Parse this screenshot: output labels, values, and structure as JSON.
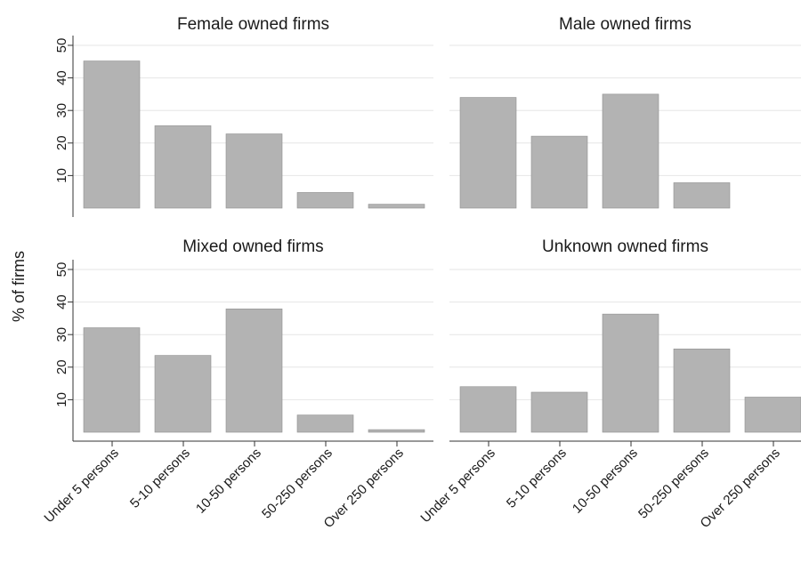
{
  "chart_data": {
    "type": "bar",
    "ylabel": "% of firms",
    "categories": [
      "Under 5 persons",
      "5-10 persons",
      "10-50 persons",
      "50-250 persons",
      "Over 250 persons"
    ],
    "ylim": [
      0,
      53
    ],
    "yticks": [
      10,
      20,
      30,
      40,
      50
    ],
    "grid": true,
    "panels": [
      {
        "title": "Female owned firms",
        "values": [
          45.2,
          25.3,
          22.8,
          4.8,
          1.2
        ]
      },
      {
        "title": "Male owned firms",
        "values": [
          34.0,
          22.1,
          35.0,
          7.8,
          0.0
        ]
      },
      {
        "title": "Mixed owned firms",
        "values": [
          32.1,
          23.6,
          37.9,
          5.3,
          0.8
        ]
      },
      {
        "title": "Unknown owned firms",
        "values": [
          14.0,
          12.3,
          36.3,
          25.6,
          10.8
        ]
      }
    ],
    "colors": {
      "bar": "#b3b3b3",
      "bar_edge": "#8f8f8f",
      "grid": "#e6e6e6",
      "axis": "#333333"
    }
  }
}
